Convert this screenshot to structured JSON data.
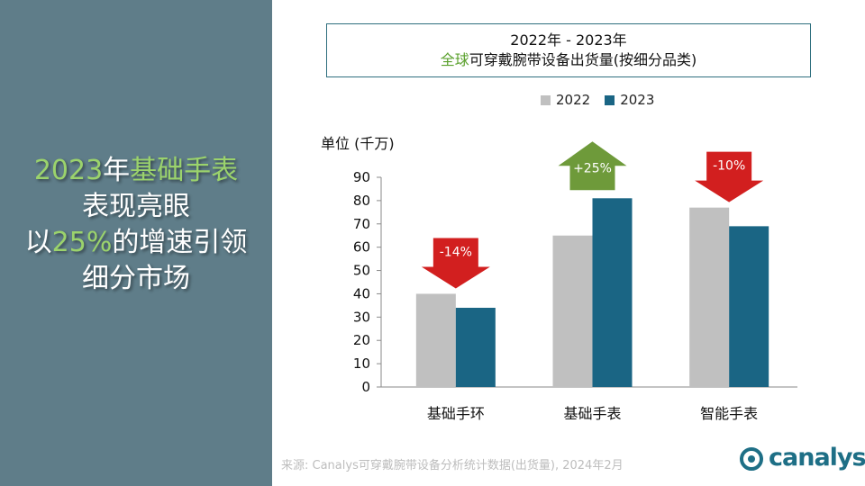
{
  "headline": {
    "line1_a": "2023",
    "line1_b": "年",
    "line1_c": "基础手表",
    "line2": "表现亮眼",
    "line3_a": "以",
    "line3_b": "25%",
    "line3_c": "的增速引领",
    "line4": "细分市场"
  },
  "title": {
    "line1": "2022年 - 2023年",
    "line2_green": "全球",
    "line2_rest": "可穿戴腕带设备出货量(按细分品类)"
  },
  "unit": "单位 (千万)",
  "source": "来源: Canalys可穿戴腕带设备分析统计数据(出货量), 2024年2月",
  "logo": "canalys",
  "colors": {
    "left_panel": "#5f7d89",
    "accent_green": "#9bd36c",
    "series_2022": "#c0c0c0",
    "series_2023": "#1a6584",
    "arrow_up": "#6e9a3a",
    "arrow_down": "#d21f1f"
  },
  "chart_data": {
    "type": "bar",
    "categories": [
      "基础手环",
      "基础手表",
      "智能手表"
    ],
    "series": [
      {
        "name": "2022",
        "values": [
          40,
          65,
          77
        ]
      },
      {
        "name": "2023",
        "values": [
          34,
          81,
          69
        ]
      }
    ],
    "ylim": [
      0,
      90
    ],
    "yticks": [
      0,
      10,
      20,
      30,
      40,
      50,
      60,
      70,
      80,
      90
    ],
    "legend_position": "top",
    "grid": false,
    "annotations": [
      {
        "category": "基础手环",
        "text": "-14%",
        "direction": "down"
      },
      {
        "category": "基础手表",
        "text": "+25%",
        "direction": "up"
      },
      {
        "category": "智能手表",
        "text": "-10%",
        "direction": "down"
      }
    ]
  }
}
